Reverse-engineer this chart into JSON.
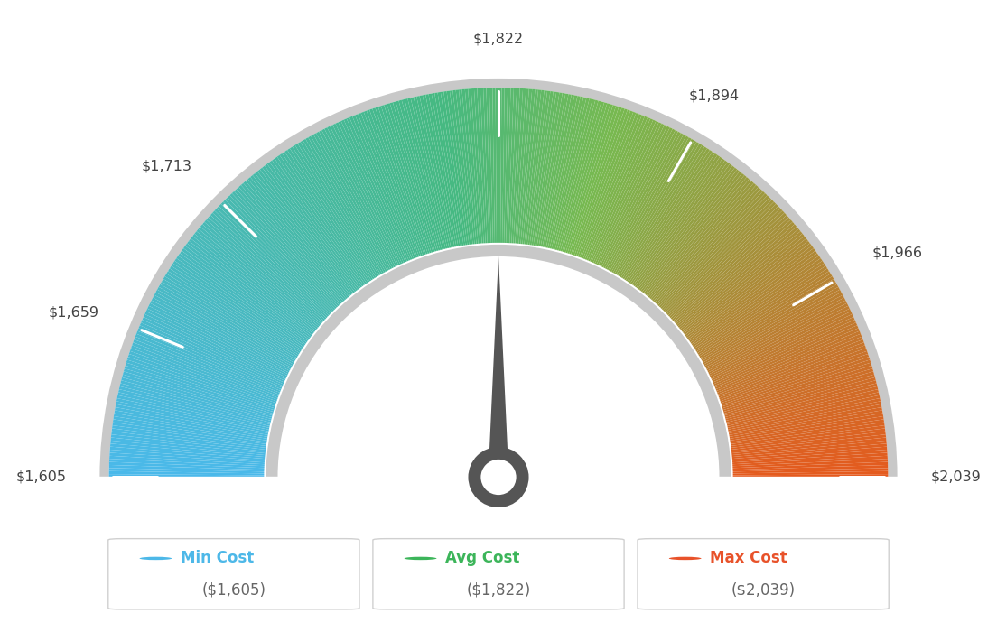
{
  "min_val": 1605,
  "max_val": 2039,
  "avg_val": 1822,
  "tick_labels": [
    "$1,605",
    "$1,659",
    "$1,713",
    "$1,822",
    "$1,894",
    "$1,966",
    "$2,039"
  ],
  "tick_values": [
    1605,
    1659,
    1713,
    1822,
    1894,
    1966,
    2039
  ],
  "legend": [
    {
      "label": "Min Cost",
      "value": "($1,605)",
      "color": "#4db8e8"
    },
    {
      "label": "Avg Cost",
      "value": "($1,822)",
      "color": "#3cb55a"
    },
    {
      "label": "Max Cost",
      "value": "($2,039)",
      "color": "#e8522a"
    }
  ],
  "background_color": "#ffffff",
  "needle_color": "#555555",
  "ring_outer_color": "#d0d0d0",
  "ring_inner_color": "#d8d8d8"
}
